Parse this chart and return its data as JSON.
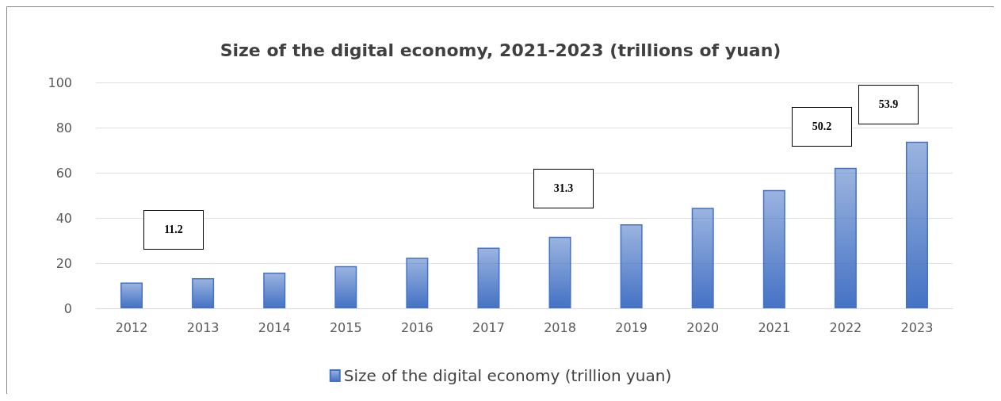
{
  "chart_data": {
    "type": "bar",
    "title": "Size of the digital economy, 2021-2023 (trillions of yuan)",
    "categories": [
      "2012",
      "2013",
      "2014",
      "2015",
      "2016",
      "2017",
      "2018",
      "2019",
      "2020",
      "2021",
      "2022",
      "2023"
    ],
    "series": [
      {
        "name": "Size of the digital economy (trillion yuan)",
        "color": "#4472c4",
        "values": [
          11.4,
          13.3,
          15.8,
          18.7,
          22.4,
          26.8,
          31.7,
          37.2,
          44.5,
          52.4,
          62.2,
          73.8
        ]
      }
    ],
    "ylim": [
      0,
      100
    ],
    "yticks": [
      0,
      20,
      40,
      60,
      80,
      100
    ],
    "grid": "y",
    "legend": "bottom",
    "annotations": [
      "11.2",
      "31.3",
      "50.2",
      "53.9"
    ]
  }
}
